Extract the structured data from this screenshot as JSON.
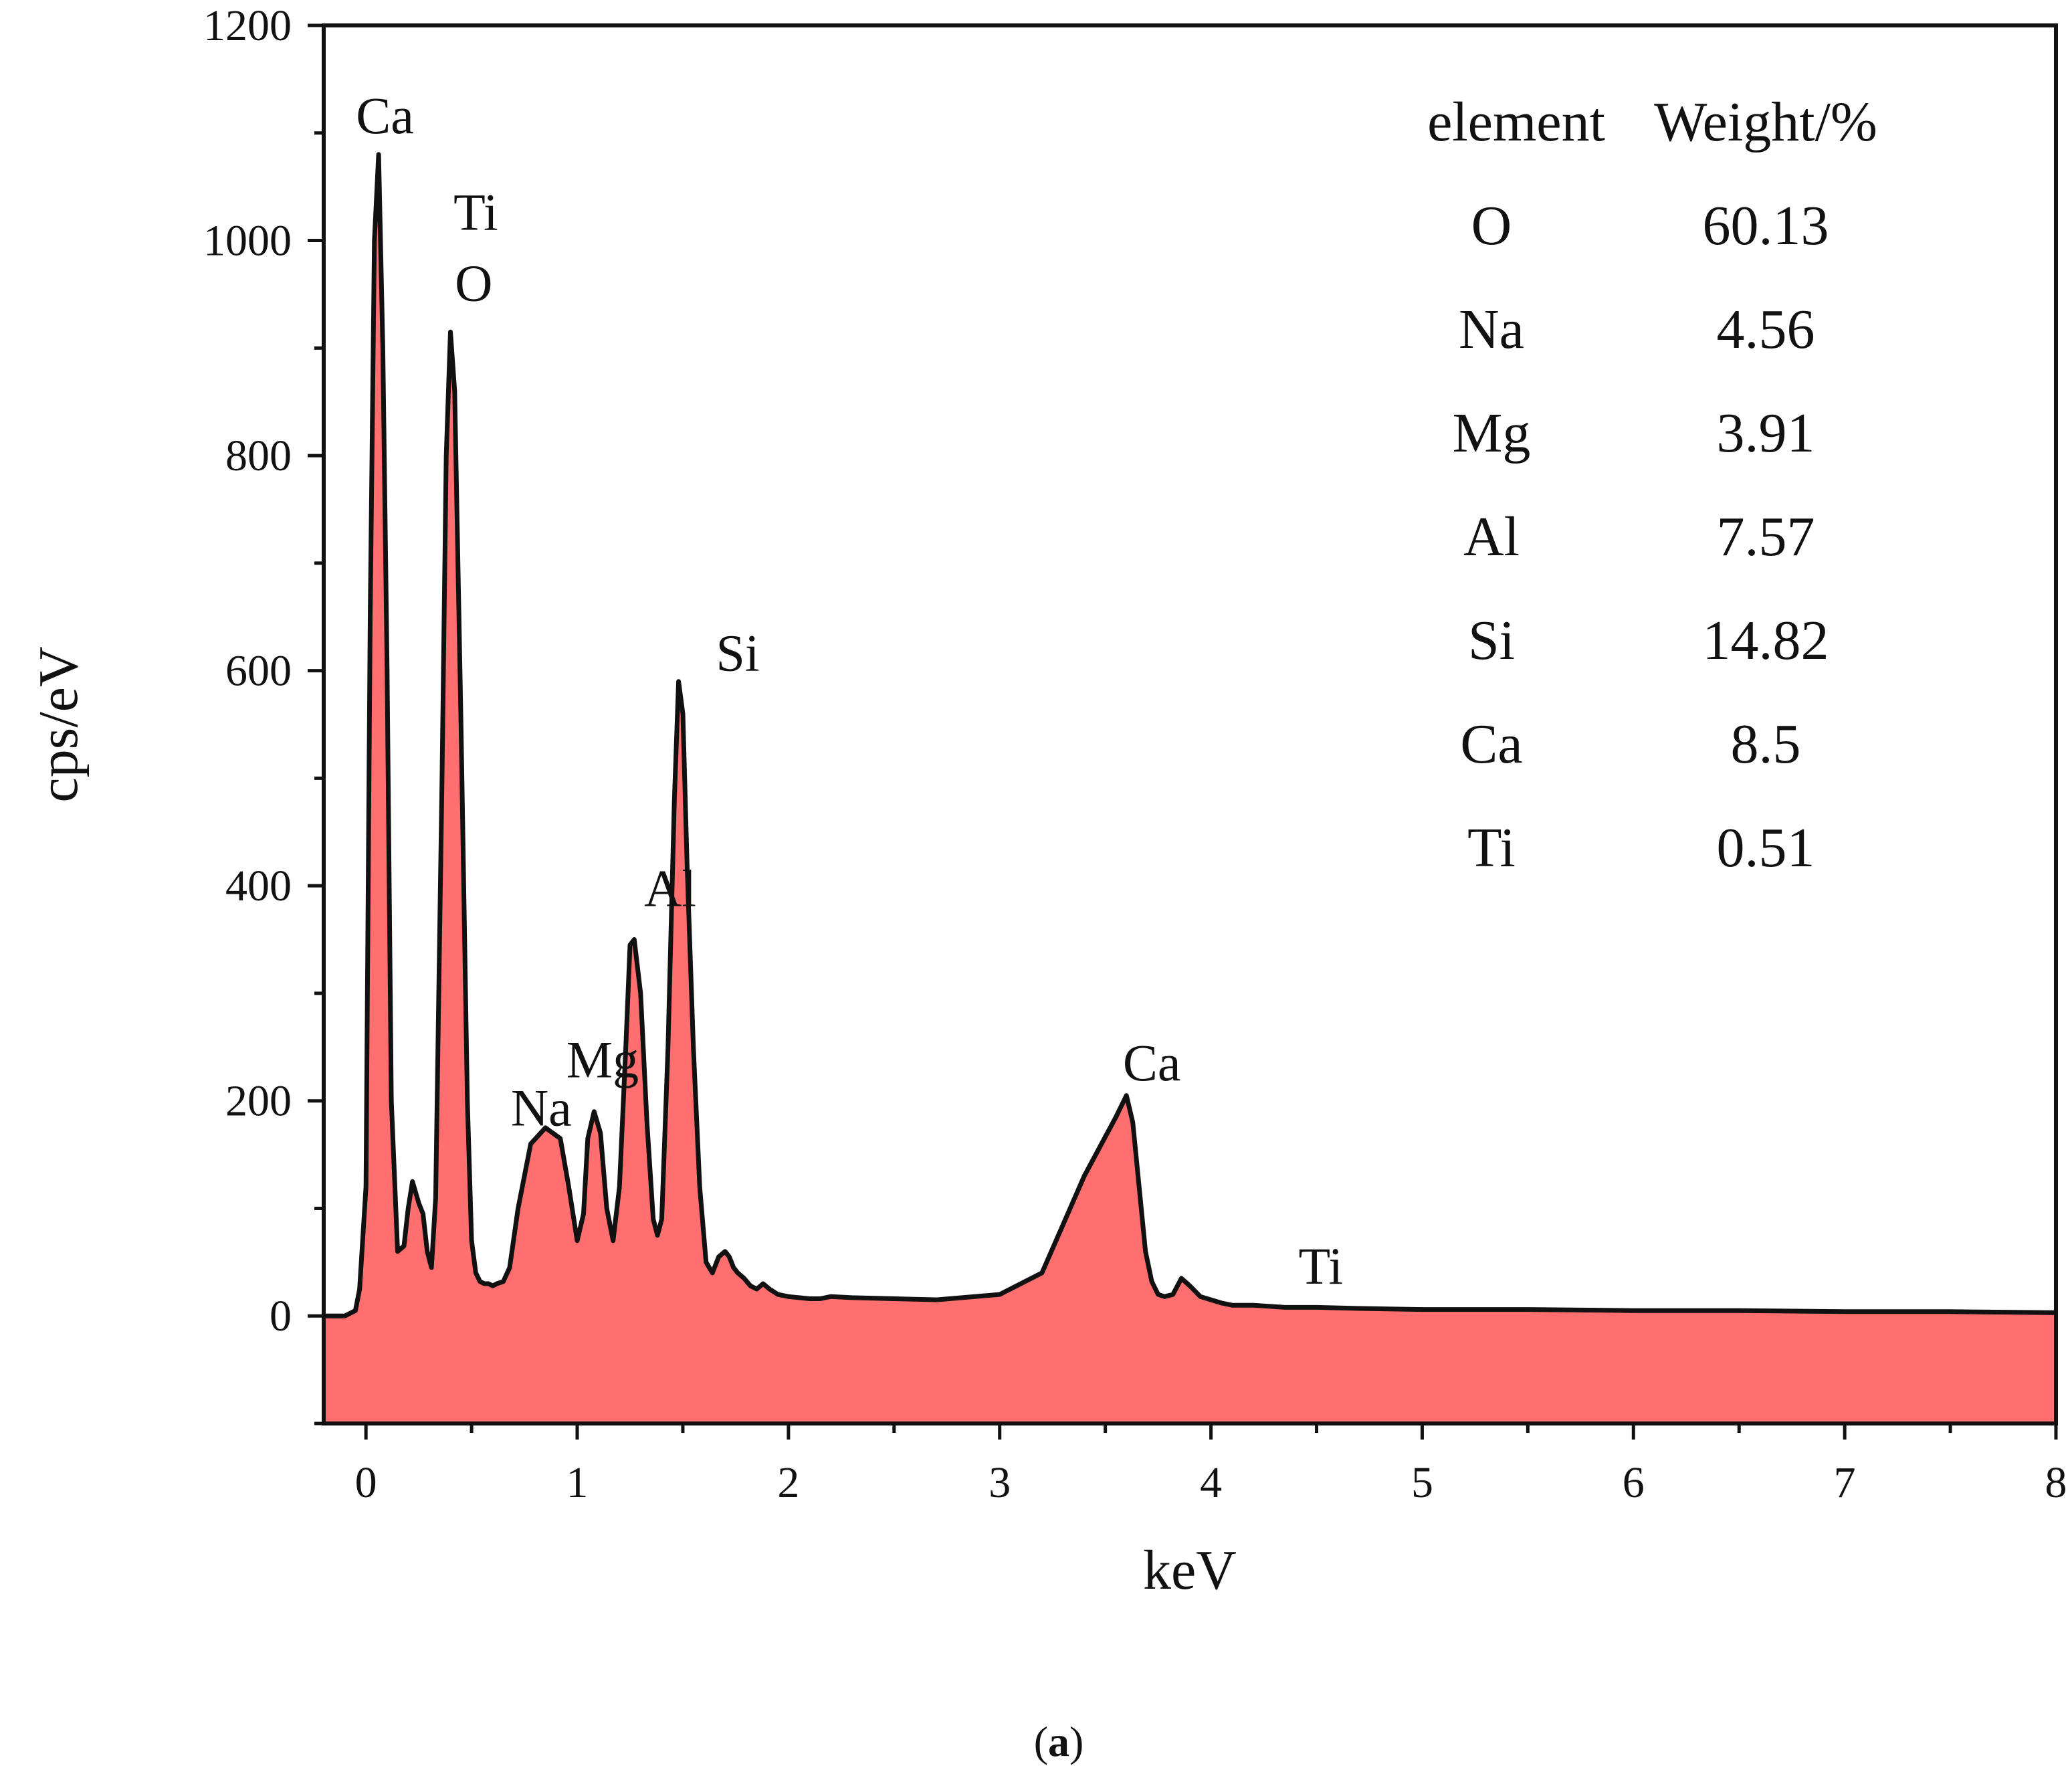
{
  "chart_data": {
    "type": "area",
    "title": "",
    "xlabel": "keV",
    "ylabel": "cps/eV",
    "xlim": [
      -0.2,
      8
    ],
    "ylim": [
      -100,
      1200
    ],
    "xticks": [
      "0",
      "1",
      "2",
      "3",
      "4",
      "5",
      "6",
      "7",
      "8"
    ],
    "yticks": [
      "0",
      "200",
      "400",
      "600",
      "800",
      "1000",
      "1200"
    ],
    "fill_color": "#ff6f6f",
    "line_color": "#111111",
    "spectrum": {
      "x": [
        -0.1,
        -0.05,
        -0.03,
        0.0,
        0.02,
        0.04,
        0.06,
        0.08,
        0.1,
        0.12,
        0.15,
        0.18,
        0.2,
        0.22,
        0.25,
        0.27,
        0.29,
        0.31,
        0.33,
        0.36,
        0.38,
        0.4,
        0.42,
        0.45,
        0.48,
        0.5,
        0.52,
        0.54,
        0.56,
        0.58,
        0.6,
        0.62,
        0.65,
        0.68,
        0.72,
        0.78,
        0.85,
        0.92,
        0.96,
        1.0,
        1.03,
        1.05,
        1.08,
        1.11,
        1.14,
        1.17,
        1.2,
        1.23,
        1.25,
        1.27,
        1.3,
        1.33,
        1.36,
        1.38,
        1.4,
        1.43,
        1.46,
        1.48,
        1.5,
        1.52,
        1.55,
        1.58,
        1.61,
        1.64,
        1.67,
        1.7,
        1.72,
        1.74,
        1.76,
        1.79,
        1.82,
        1.85,
        1.88,
        1.91,
        1.95,
        2.0,
        2.05,
        2.1,
        2.15,
        2.2,
        2.3,
        2.5,
        2.7,
        3.0,
        3.2,
        3.4,
        3.55,
        3.6,
        3.63,
        3.66,
        3.69,
        3.72,
        3.75,
        3.78,
        3.82,
        3.86,
        3.9,
        3.95,
        4.0,
        4.05,
        4.1,
        4.2,
        4.35,
        4.5,
        4.7,
        5.0,
        5.5,
        6.0,
        6.5,
        7.0,
        7.5,
        8.0
      ],
      "y": [
        0,
        5,
        25,
        120,
        650,
        1000,
        1080,
        900,
        600,
        200,
        60,
        65,
        100,
        125,
        105,
        95,
        60,
        45,
        110,
        500,
        800,
        915,
        860,
        550,
        200,
        70,
        40,
        32,
        30,
        30,
        28,
        30,
        32,
        45,
        100,
        160,
        175,
        165,
        120,
        70,
        95,
        165,
        190,
        170,
        100,
        70,
        120,
        250,
        345,
        350,
        300,
        180,
        90,
        75,
        90,
        250,
        480,
        590,
        560,
        420,
        250,
        120,
        50,
        40,
        55,
        60,
        55,
        45,
        40,
        35,
        28,
        25,
        30,
        25,
        20,
        18,
        17,
        16,
        16,
        18,
        17,
        16,
        15,
        20,
        40,
        130,
        185,
        205,
        180,
        120,
        60,
        32,
        20,
        18,
        20,
        35,
        28,
        18,
        15,
        12,
        10,
        10,
        8,
        8,
        7,
        6,
        6,
        5,
        5,
        4,
        4,
        3
      ]
    },
    "peak_labels": [
      {
        "text": "Ca",
        "x": 0.09,
        "y": 1100
      },
      {
        "text": "Ti",
        "x": 0.52,
        "y": 1010
      },
      {
        "text": "O",
        "x": 0.51,
        "y": 944
      },
      {
        "text": "Na",
        "x": 0.83,
        "y": 177
      },
      {
        "text": "Mg",
        "x": 1.12,
        "y": 222
      },
      {
        "text": "Al",
        "x": 1.44,
        "y": 381
      },
      {
        "text": "Si",
        "x": 1.76,
        "y": 600
      },
      {
        "text": "Ca",
        "x": 3.72,
        "y": 219
      },
      {
        "text": "Ti",
        "x": 4.52,
        "y": 30
      }
    ],
    "composition_table": {
      "headers": [
        "element",
        "Weight/%"
      ],
      "rows": [
        {
          "element": "O",
          "weight": "60.13"
        },
        {
          "element": "Na",
          "weight": "4.56"
        },
        {
          "element": "Mg",
          "weight": "3.91"
        },
        {
          "element": "Al",
          "weight": "7.57"
        },
        {
          "element": "Si",
          "weight": "14.82"
        },
        {
          "element": "Ca",
          "weight": "8.5"
        },
        {
          "element": "Ti",
          "weight": "0.51"
        }
      ]
    }
  },
  "caption": {
    "open": "(",
    "letter": "a",
    "close": ")"
  }
}
